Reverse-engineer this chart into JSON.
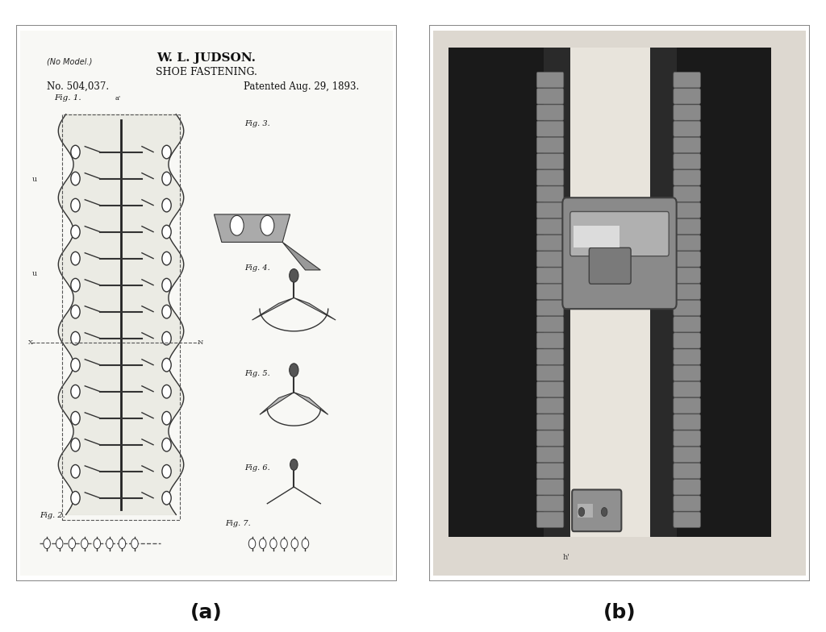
{
  "fig_width": 10.24,
  "fig_height": 7.84,
  "dpi": 100,
  "bg_color": "#ffffff",
  "panel_a_label": "(a)",
  "panel_b_label": "(b)",
  "label_fontsize": 18,
  "label_fontweight": "bold",
  "patent_title_line1": "W. L. JUDSON.",
  "patent_title_line2": "SHOE FASTENING.",
  "patent_no": "No. 504,037.",
  "patent_date": "Patented Aug. 29, 1893.",
  "patent_no_model": "(No Model.)",
  "border_color": "#cccccc",
  "patent_bg": "#f5f5f0",
  "zipper_bg": "#e8e8e8"
}
